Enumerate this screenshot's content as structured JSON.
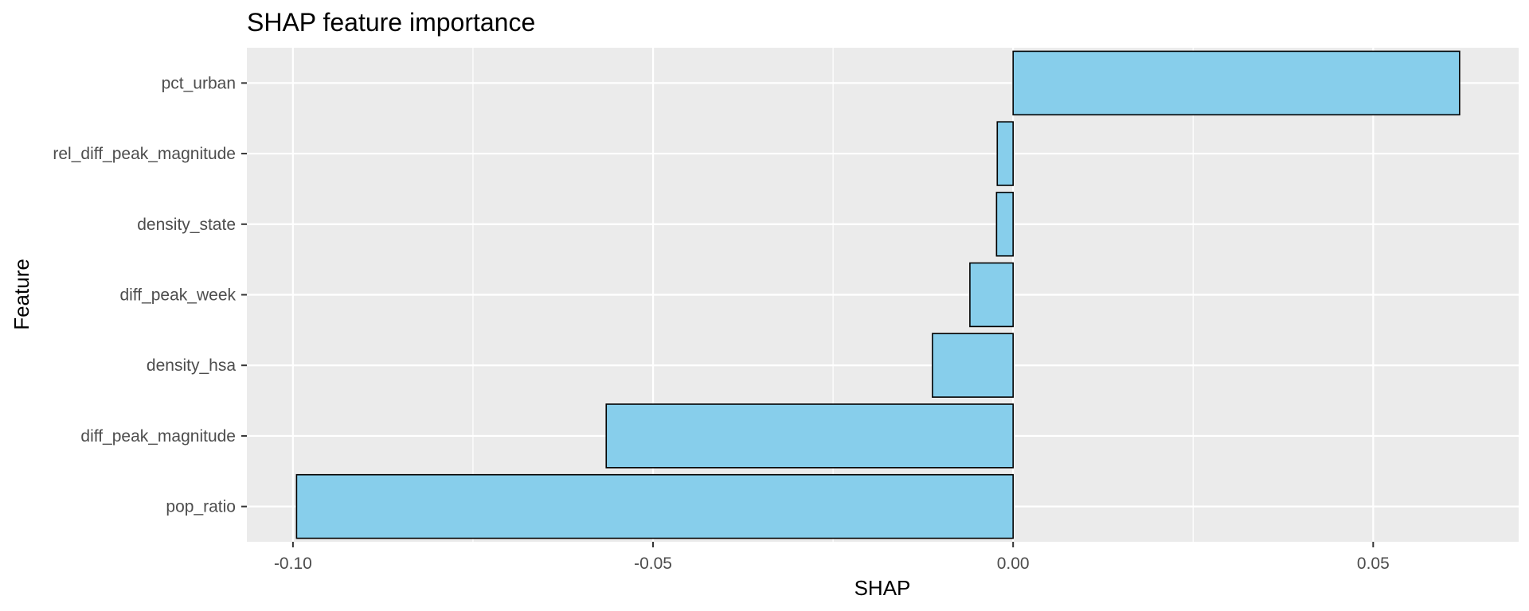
{
  "chart_data": {
    "type": "bar",
    "orientation": "horizontal",
    "title": "SHAP feature importance",
    "xlabel": "SHAP",
    "ylabel": "Feature",
    "categories": [
      "pct_urban",
      "rel_diff_peak_magnitude",
      "density_state",
      "diff_peak_week",
      "density_hsa",
      "diff_peak_magnitude",
      "pop_ratio"
    ],
    "values": [
      0.062,
      -0.0022,
      -0.0023,
      -0.006,
      -0.0112,
      -0.0565,
      -0.0995
    ],
    "xlim": [
      -0.1064,
      0.0702
    ],
    "xticks": [
      -0.1,
      -0.05,
      0.0,
      0.05
    ],
    "xtick_labels": [
      "-0.10",
      "-0.05",
      "0.00",
      "0.05"
    ],
    "grid": true,
    "colors": {
      "bar_fill": "#87ceeb",
      "bar_stroke": "#000000",
      "panel_background": "#ebebeb",
      "grid_major": "#ffffff"
    }
  }
}
